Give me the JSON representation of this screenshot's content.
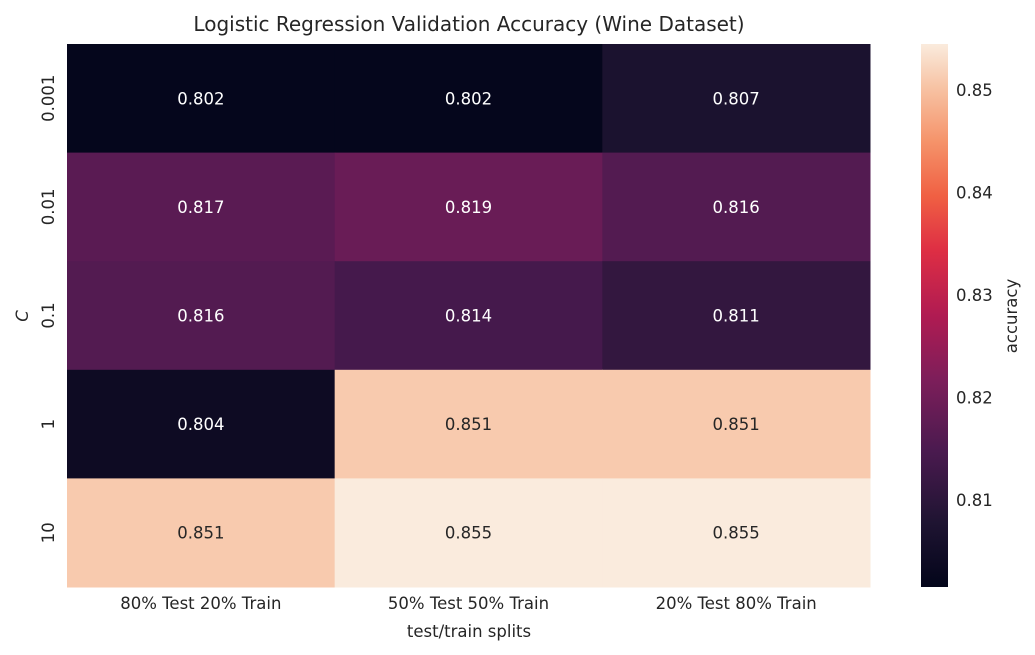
{
  "chart_data": {
    "type": "heatmap",
    "title": "Logistic Regression Validation Accuracy (Wine Dataset)",
    "xlabel": "test/train splits",
    "ylabel": "C",
    "x_categories": [
      "80% Test 20% Train",
      "50% Test 50% Train",
      "20% Test 80% Train"
    ],
    "y_categories": [
      "0.001",
      "0.01",
      "0.1",
      "1",
      "10"
    ],
    "values": [
      [
        0.802,
        0.802,
        0.807
      ],
      [
        0.817,
        0.819,
        0.816
      ],
      [
        0.816,
        0.814,
        0.811
      ],
      [
        0.804,
        0.851,
        0.851
      ],
      [
        0.851,
        0.855,
        0.855
      ]
    ],
    "value_labels": [
      [
        "0.802",
        "0.802",
        "0.807"
      ],
      [
        "0.817",
        "0.819",
        "0.816"
      ],
      [
        "0.816",
        "0.814",
        "0.811"
      ],
      [
        "0.804",
        "0.851",
        "0.851"
      ],
      [
        "0.851",
        "0.855",
        "0.855"
      ]
    ],
    "colorbar": {
      "label": "accuracy",
      "range": [
        0.8015,
        0.8545
      ],
      "ticks": [
        "0.81",
        "0.82",
        "0.83",
        "0.84",
        "0.85"
      ],
      "colormap": "rocket"
    }
  }
}
